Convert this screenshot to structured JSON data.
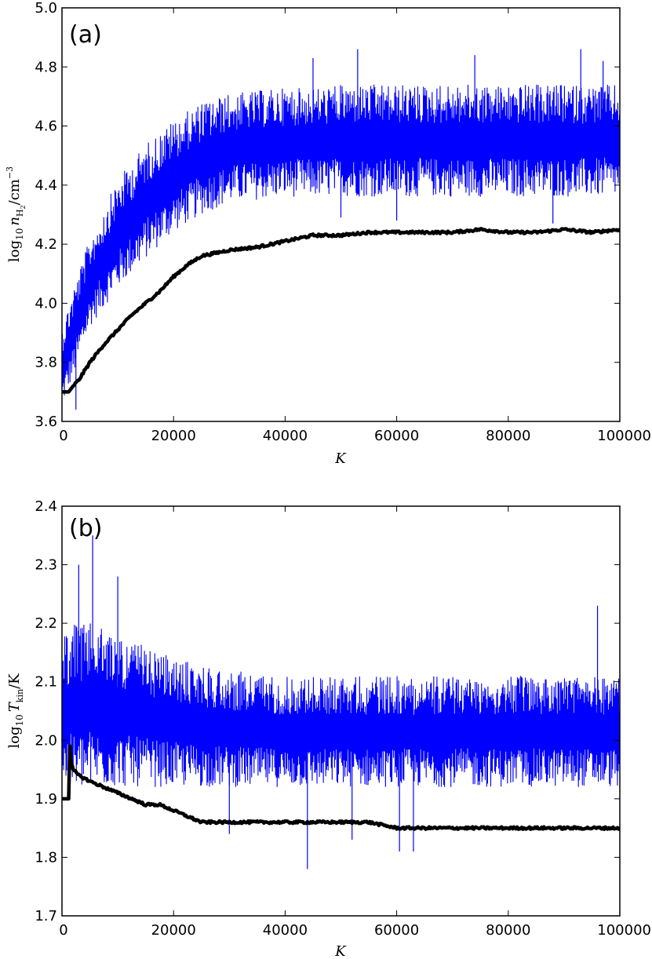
{
  "chart_data": [
    {
      "type": "line",
      "panel_label": "(a)",
      "xlabel": "K",
      "ylabel": "log₁₀ n_H₂/cm⁻³",
      "ylabel_parts": {
        "prefix": "log",
        "prefix_sub": "10",
        "var": "n",
        "var_sub": "H",
        "var_sub_sub": "2",
        "unit": "/cm",
        "unit_sup": "−3"
      },
      "xlim": [
        0,
        100000
      ],
      "ylim": [
        3.6,
        5.0
      ],
      "xticks": [
        "0",
        "20000",
        "40000",
        "60000",
        "80000",
        "100000"
      ],
      "yticks": [
        "3.6",
        "3.8",
        "4.0",
        "4.2",
        "4.4",
        "4.6",
        "4.8",
        "5.0"
      ],
      "grid": false,
      "series": [
        {
          "color": "#0000ff",
          "style": "noisy-band",
          "x": [
            0,
            2000,
            5000,
            10000,
            15000,
            20000,
            25000,
            30000,
            35000,
            40000,
            45000,
            50000,
            55000,
            60000,
            65000,
            70000,
            75000,
            80000,
            85000,
            90000,
            95000,
            100000
          ],
          "lower": [
            3.65,
            3.75,
            3.92,
            4.05,
            4.15,
            4.24,
            4.3,
            4.34,
            4.35,
            4.36,
            4.36,
            4.36,
            4.36,
            4.36,
            4.36,
            4.36,
            4.36,
            4.36,
            4.36,
            4.36,
            4.36,
            4.36
          ],
          "upper": [
            3.92,
            4.05,
            4.22,
            4.42,
            4.54,
            4.62,
            4.68,
            4.71,
            4.72,
            4.73,
            4.73,
            4.74,
            4.74,
            4.74,
            4.74,
            4.74,
            4.74,
            4.74,
            4.74,
            4.74,
            4.74,
            4.74
          ],
          "spikes": [
            [
              2500,
              3.64
            ],
            [
              45000,
              4.83
            ],
            [
              53000,
              4.86
            ],
            [
              74000,
              4.84
            ],
            [
              93000,
              4.86
            ],
            [
              97000,
              4.82
            ],
            [
              60000,
              4.28
            ],
            [
              50000,
              4.29
            ],
            [
              88000,
              4.27
            ]
          ]
        },
        {
          "color": "#000000",
          "style": "thick",
          "x": [
            0,
            1000,
            1200,
            2000,
            3000,
            5000,
            7500,
            10000,
            12500,
            15000,
            17500,
            20000,
            22500,
            25000,
            27500,
            30000,
            35000,
            40000,
            45000,
            50000,
            55000,
            60000,
            65000,
            70000,
            75000,
            80000,
            85000,
            90000,
            95000,
            100000
          ],
          "y": [
            3.7,
            3.7,
            3.7,
            3.72,
            3.74,
            3.8,
            3.86,
            3.91,
            3.96,
            4.0,
            4.04,
            4.09,
            4.13,
            4.16,
            4.17,
            4.18,
            4.19,
            4.21,
            4.23,
            4.23,
            4.24,
            4.24,
            4.24,
            4.24,
            4.25,
            4.24,
            4.24,
            4.25,
            4.24,
            4.25
          ]
        }
      ]
    },
    {
      "type": "line",
      "panel_label": "(b)",
      "xlabel": "K",
      "ylabel": "log₁₀ T_kin/K",
      "ylabel_parts": {
        "prefix": "log",
        "prefix_sub": "10",
        "var": "T",
        "var_sub": "kin",
        "unit": "/K"
      },
      "xlim": [
        0,
        100000
      ],
      "ylim": [
        1.7,
        2.4
      ],
      "xticks": [
        "0",
        "20000",
        "40000",
        "60000",
        "80000",
        "100000"
      ],
      "yticks": [
        "1.7",
        "1.8",
        "1.9",
        "2.0",
        "2.1",
        "2.2",
        "2.3",
        "2.4"
      ],
      "grid": false,
      "series": [
        {
          "color": "#0000ff",
          "style": "noisy-band",
          "x": [
            0,
            2000,
            5000,
            10000,
            15000,
            20000,
            25000,
            30000,
            40000,
            50000,
            60000,
            70000,
            80000,
            90000,
            100000
          ],
          "lower": [
            1.92,
            1.91,
            1.92,
            1.92,
            1.92,
            1.92,
            1.92,
            1.92,
            1.92,
            1.92,
            1.92,
            1.92,
            1.92,
            1.92,
            1.92
          ],
          "upper": [
            2.18,
            2.2,
            2.2,
            2.18,
            2.16,
            2.14,
            2.13,
            2.12,
            2.11,
            2.11,
            2.11,
            2.11,
            2.11,
            2.11,
            2.11
          ],
          "spikes": [
            [
              5500,
              2.35
            ],
            [
              3000,
              2.3
            ],
            [
              10000,
              2.28
            ],
            [
              96000,
              2.23
            ],
            [
              44000,
              1.78
            ],
            [
              60500,
              1.81
            ],
            [
              63000,
              1.81
            ],
            [
              52000,
              1.83
            ],
            [
              30000,
              1.84
            ]
          ]
        },
        {
          "color": "#000000",
          "style": "thick",
          "x": [
            0,
            1200,
            1250,
            1500,
            2000,
            3000,
            5000,
            7500,
            10000,
            12500,
            15000,
            17500,
            20000,
            22500,
            25000,
            27500,
            30000,
            35000,
            40000,
            45000,
            50000,
            55000,
            60000,
            65000,
            70000,
            75000,
            80000,
            85000,
            90000,
            95000,
            100000
          ],
          "y": [
            1.9,
            1.9,
            2.02,
            1.97,
            1.95,
            1.94,
            1.93,
            1.92,
            1.91,
            1.9,
            1.89,
            1.89,
            1.88,
            1.87,
            1.86,
            1.86,
            1.86,
            1.86,
            1.86,
            1.86,
            1.86,
            1.86,
            1.85,
            1.85,
            1.85,
            1.85,
            1.85,
            1.85,
            1.85,
            1.85,
            1.85
          ]
        }
      ]
    }
  ]
}
